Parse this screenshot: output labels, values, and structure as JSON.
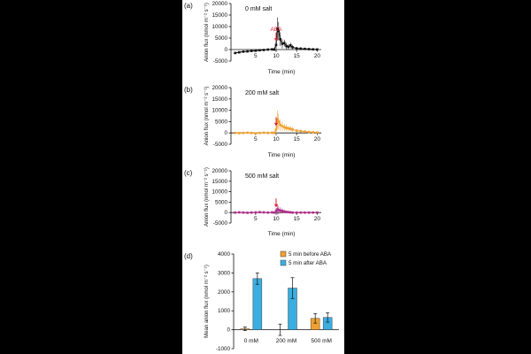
{
  "figure": {
    "colors": {
      "black": "#111111",
      "orange": "#f0a030",
      "magenta": "#b0308a",
      "cyan": "#3aaee0",
      "red": "#e02030"
    }
  },
  "chart_data": [
    {
      "type": "line",
      "panel_label": "(a)",
      "title": "0 mM salt",
      "ylabel": "Anion flux (nmol m⁻² s⁻¹)",
      "xlabel": "Time (min)",
      "xlim": [
        -1,
        21
      ],
      "ylim": [
        -5000,
        20000
      ],
      "x_ticks": [
        5,
        10,
        15,
        20
      ],
      "y_ticks": [
        -5000,
        0,
        5000,
        10000,
        15000,
        20000
      ],
      "annotation": {
        "text": "ABA",
        "x": 10,
        "color": "#e02030"
      },
      "series": [
        {
          "color": "#111111",
          "x": [
            0,
            1,
            2,
            3,
            4,
            5,
            6,
            7,
            8,
            9,
            9.5,
            10,
            10.3,
            10.6,
            11,
            11.5,
            12,
            12.5,
            13,
            13.5,
            14,
            15,
            16,
            17,
            18,
            19,
            20
          ],
          "y": [
            -1500,
            -1200,
            -900,
            -800,
            -600,
            -500,
            -300,
            -200,
            0,
            100,
            0,
            2000,
            9000,
            8000,
            4500,
            2500,
            2800,
            1500,
            1200,
            1800,
            1000,
            500,
            400,
            300,
            200,
            100,
            50
          ],
          "error": [
            300,
            300,
            300,
            300,
            300,
            300,
            300,
            300,
            300,
            300,
            300,
            3000,
            5000,
            4000,
            3000,
            2000,
            1500,
            1500,
            1200,
            1200,
            1000,
            700,
            600,
            500,
            400,
            300,
            300
          ]
        }
      ]
    },
    {
      "type": "line",
      "panel_label": "(b)",
      "title": "200 mM salt",
      "ylabel": "Anion flux (nmol m⁻² s⁻¹)",
      "xlabel": "Time (min)",
      "xlim": [
        -1,
        21
      ],
      "ylim": [
        -5000,
        20000
      ],
      "x_ticks": [
        5,
        10,
        15,
        20
      ],
      "y_ticks": [
        -5000,
        0,
        5000,
        10000,
        15000,
        20000
      ],
      "annotation": {
        "text": "",
        "x": 10,
        "color": "#e02030"
      },
      "series": [
        {
          "color": "#f0a030",
          "x": [
            0,
            1,
            2,
            3,
            4,
            5,
            6,
            7,
            8,
            9,
            9.5,
            10,
            10.3,
            10.6,
            11,
            11.5,
            12,
            12.5,
            13,
            13.5,
            14,
            15,
            16,
            17,
            18,
            19,
            20
          ],
          "y": [
            0,
            -100,
            0,
            100,
            0,
            -200,
            0,
            100,
            0,
            100,
            0,
            1500,
            6000,
            5000,
            3500,
            3000,
            2500,
            2200,
            2000,
            1800,
            1500,
            1000,
            800,
            600,
            400,
            300,
            200
          ],
          "error": [
            200,
            200,
            200,
            200,
            200,
            200,
            200,
            200,
            200,
            200,
            200,
            2000,
            4000,
            3500,
            2500,
            2000,
            1500,
            1500,
            1200,
            1200,
            1000,
            700,
            600,
            500,
            400,
            300,
            300
          ]
        }
      ]
    },
    {
      "type": "line",
      "panel_label": "(c)",
      "title": "500 mM salt",
      "ylabel": "Anion flux (nmol m⁻² s⁻¹)",
      "xlabel": "Time (min)",
      "xlim": [
        -1,
        21
      ],
      "ylim": [
        -5000,
        20000
      ],
      "x_ticks": [
        5,
        10,
        15,
        20
      ],
      "y_ticks": [
        -5000,
        0,
        5000,
        10000,
        15000,
        20000
      ],
      "annotation": {
        "text": "",
        "x": 10,
        "color": "#e02030"
      },
      "series": [
        {
          "color": "#b0308a",
          "x": [
            0,
            1,
            2,
            3,
            4,
            5,
            6,
            7,
            8,
            9,
            9.5,
            10,
            10.3,
            10.6,
            11,
            11.5,
            12,
            12.5,
            13,
            13.5,
            14,
            15,
            16,
            17,
            18,
            19,
            20
          ],
          "y": [
            0,
            100,
            0,
            -100,
            0,
            100,
            200,
            100,
            0,
            100,
            0,
            800,
            1500,
            1200,
            1000,
            800,
            500,
            300,
            200,
            100,
            0,
            0,
            0,
            0,
            0,
            0,
            0
          ],
          "error": [
            200,
            200,
            200,
            200,
            200,
            200,
            200,
            200,
            200,
            200,
            200,
            1500,
            2500,
            2000,
            1500,
            1200,
            800,
            600,
            500,
            400,
            300,
            300,
            300,
            300,
            300,
            300,
            300
          ]
        }
      ]
    },
    {
      "type": "bar",
      "panel_label": "(d)",
      "ylabel": "Mean anion flux (nmol m⁻² s⁻¹)",
      "categories": [
        "0 mM",
        "200 mM",
        "500 mM"
      ],
      "ylim": [
        -1000,
        4000
      ],
      "y_ticks": [
        -1000,
        0,
        1000,
        2000,
        3000,
        4000
      ],
      "legend_position": "top-right",
      "series": [
        {
          "name": "5 min before ABA",
          "color": "#f0a030",
          "values": [
            50,
            0,
            600
          ],
          "error": [
            100,
            300,
            250
          ]
        },
        {
          "name": "5 min after ABA",
          "color": "#3aaee0",
          "values": [
            2700,
            2200,
            650
          ],
          "error": [
            300,
            550,
            250
          ]
        }
      ]
    }
  ]
}
